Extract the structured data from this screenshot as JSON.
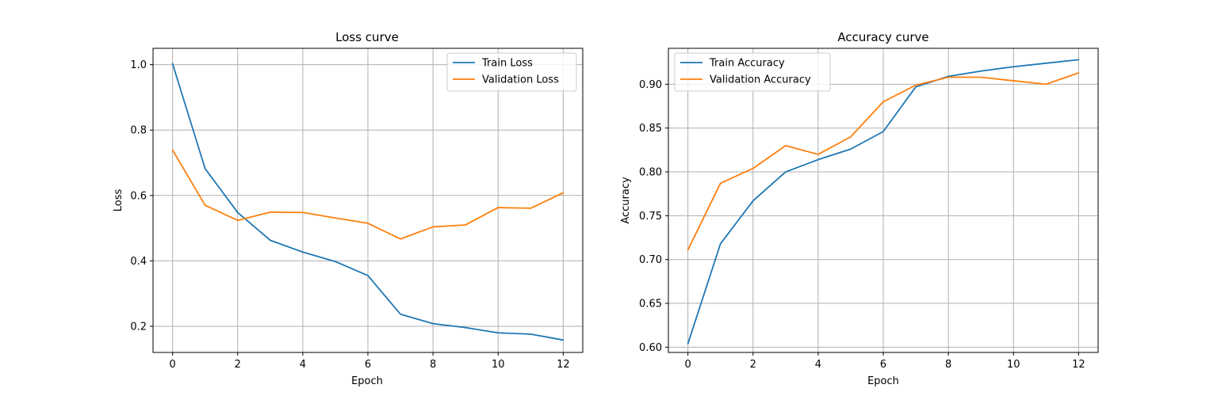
{
  "chart_data": [
    {
      "type": "line",
      "title": "Loss curve",
      "xlabel": "Epoch",
      "ylabel": "Loss",
      "xlim": [
        -0.6,
        12.6
      ],
      "ylim": [
        0.12,
        1.05
      ],
      "xticks": [
        0,
        2,
        4,
        6,
        8,
        10,
        12
      ],
      "xtick_labels": [
        "0",
        "2",
        "4",
        "6",
        "8",
        "10",
        "12"
      ],
      "yticks": [
        0.2,
        0.4,
        0.6,
        0.8,
        1.0
      ],
      "ytick_labels": [
        "0.2",
        "0.4",
        "0.6",
        "0.8",
        "1.0"
      ],
      "grid": true,
      "legend_position": "top-right",
      "x": [
        0,
        1,
        2,
        3,
        4,
        5,
        6,
        7,
        8,
        9,
        10,
        11,
        12
      ],
      "series": [
        {
          "name": "Train Loss",
          "color": "#1f77b4",
          "values": [
            1.003,
            0.682,
            0.548,
            0.463,
            0.427,
            0.398,
            0.355,
            0.237,
            0.208,
            0.196,
            0.18,
            0.176,
            0.158
          ]
        },
        {
          "name": "Validation Loss",
          "color": "#ff7f0e",
          "values": [
            0.739,
            0.57,
            0.524,
            0.549,
            0.548,
            0.531,
            0.515,
            0.467,
            0.504,
            0.51,
            0.563,
            0.561,
            0.608
          ]
        }
      ]
    },
    {
      "type": "line",
      "title": "Accuracy curve",
      "xlabel": "Epoch",
      "ylabel": "Accuracy",
      "xlim": [
        -0.6,
        12.6
      ],
      "ylim": [
        0.594,
        0.941
      ],
      "xticks": [
        0,
        2,
        4,
        6,
        8,
        10,
        12
      ],
      "xtick_labels": [
        "0",
        "2",
        "4",
        "6",
        "8",
        "10",
        "12"
      ],
      "yticks": [
        0.6,
        0.65,
        0.7,
        0.75,
        0.8,
        0.85,
        0.9
      ],
      "ytick_labels": [
        "0.60",
        "0.65",
        "0.70",
        "0.75",
        "0.80",
        "0.85",
        "0.90"
      ],
      "grid": true,
      "legend_position": "top-left",
      "x": [
        0,
        1,
        2,
        3,
        4,
        5,
        6,
        7,
        8,
        9,
        10,
        11,
        12
      ],
      "series": [
        {
          "name": "Train Accuracy",
          "color": "#1f77b4",
          "values": [
            0.604,
            0.718,
            0.767,
            0.8,
            0.814,
            0.826,
            0.846,
            0.897,
            0.909,
            0.915,
            0.92,
            0.924,
            0.928
          ]
        },
        {
          "name": "Validation Accuracy",
          "color": "#ff7f0e",
          "values": [
            0.711,
            0.787,
            0.804,
            0.83,
            0.82,
            0.84,
            0.88,
            0.899,
            0.908,
            0.908,
            0.904,
            0.9,
            0.913
          ]
        }
      ]
    }
  ]
}
